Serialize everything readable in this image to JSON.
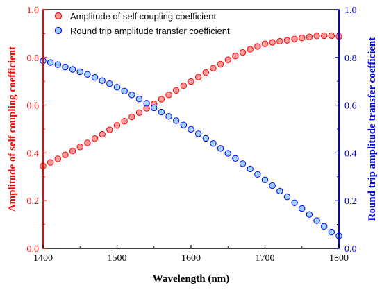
{
  "chart_data": {
    "type": "scatter",
    "xlabel": "Wavelength (nm)",
    "ylabel_left": "Amplitude of self coupling coefficient",
    "ylabel_right": "Round trip amplitude transfer coefficient",
    "xlim": [
      1400,
      1800
    ],
    "ylim_left": [
      0.0,
      1.0
    ],
    "ylim_right": [
      0.0,
      1.0
    ],
    "x_ticks": [
      "1400",
      "1500",
      "1600",
      "1700",
      "1800"
    ],
    "y_ticks_left": [
      "0.0",
      "0.2",
      "0.4",
      "0.6",
      "0.8",
      "1.0"
    ],
    "y_ticks_right": [
      "0.0",
      "0.2",
      "0.4",
      "0.6",
      "0.8",
      "1.0"
    ],
    "legend_position": "top-left",
    "grid": false,
    "series": [
      {
        "name": "Amplitude of self coupling coefficient",
        "axis": "left",
        "color": "#ff0000",
        "fill": "#ff9a9a",
        "x": [
          1400,
          1410,
          1420,
          1430,
          1440,
          1450,
          1460,
          1470,
          1480,
          1490,
          1500,
          1510,
          1520,
          1530,
          1540,
          1550,
          1560,
          1570,
          1580,
          1590,
          1600,
          1610,
          1620,
          1630,
          1640,
          1650,
          1660,
          1670,
          1680,
          1690,
          1700,
          1710,
          1720,
          1730,
          1740,
          1750,
          1760,
          1770,
          1780,
          1790,
          1800
        ],
        "y": [
          0.345,
          0.36,
          0.375,
          0.392,
          0.408,
          0.425,
          0.442,
          0.46,
          0.478,
          0.497,
          0.515,
          0.533,
          0.551,
          0.569,
          0.587,
          0.605,
          0.625,
          0.643,
          0.662,
          0.681,
          0.699,
          0.718,
          0.737,
          0.755,
          0.772,
          0.79,
          0.806,
          0.821,
          0.834,
          0.846,
          0.857,
          0.863,
          0.868,
          0.872,
          0.877,
          0.882,
          0.886,
          0.89,
          0.891,
          0.891,
          0.888
        ]
      },
      {
        "name": "Round trip amplitude transfer coefficient",
        "axis": "right",
        "color": "#0000ff",
        "fill": "#9fd3ff",
        "x": [
          1400,
          1410,
          1420,
          1430,
          1440,
          1450,
          1460,
          1470,
          1480,
          1490,
          1500,
          1510,
          1520,
          1530,
          1540,
          1550,
          1560,
          1570,
          1580,
          1590,
          1600,
          1610,
          1620,
          1630,
          1640,
          1650,
          1660,
          1670,
          1680,
          1690,
          1700,
          1710,
          1720,
          1730,
          1740,
          1750,
          1760,
          1770,
          1780,
          1790,
          1800
        ],
        "y": [
          0.786,
          0.779,
          0.77,
          0.76,
          0.75,
          0.74,
          0.729,
          0.716,
          0.703,
          0.69,
          0.675,
          0.659,
          0.643,
          0.626,
          0.608,
          0.589,
          0.571,
          0.553,
          0.535,
          0.517,
          0.499,
          0.48,
          0.461,
          0.44,
          0.419,
          0.398,
          0.377,
          0.355,
          0.333,
          0.31,
          0.287,
          0.263,
          0.24,
          0.216,
          0.191,
          0.167,
          0.142,
          0.116,
          0.092,
          0.068,
          0.052
        ]
      }
    ]
  }
}
